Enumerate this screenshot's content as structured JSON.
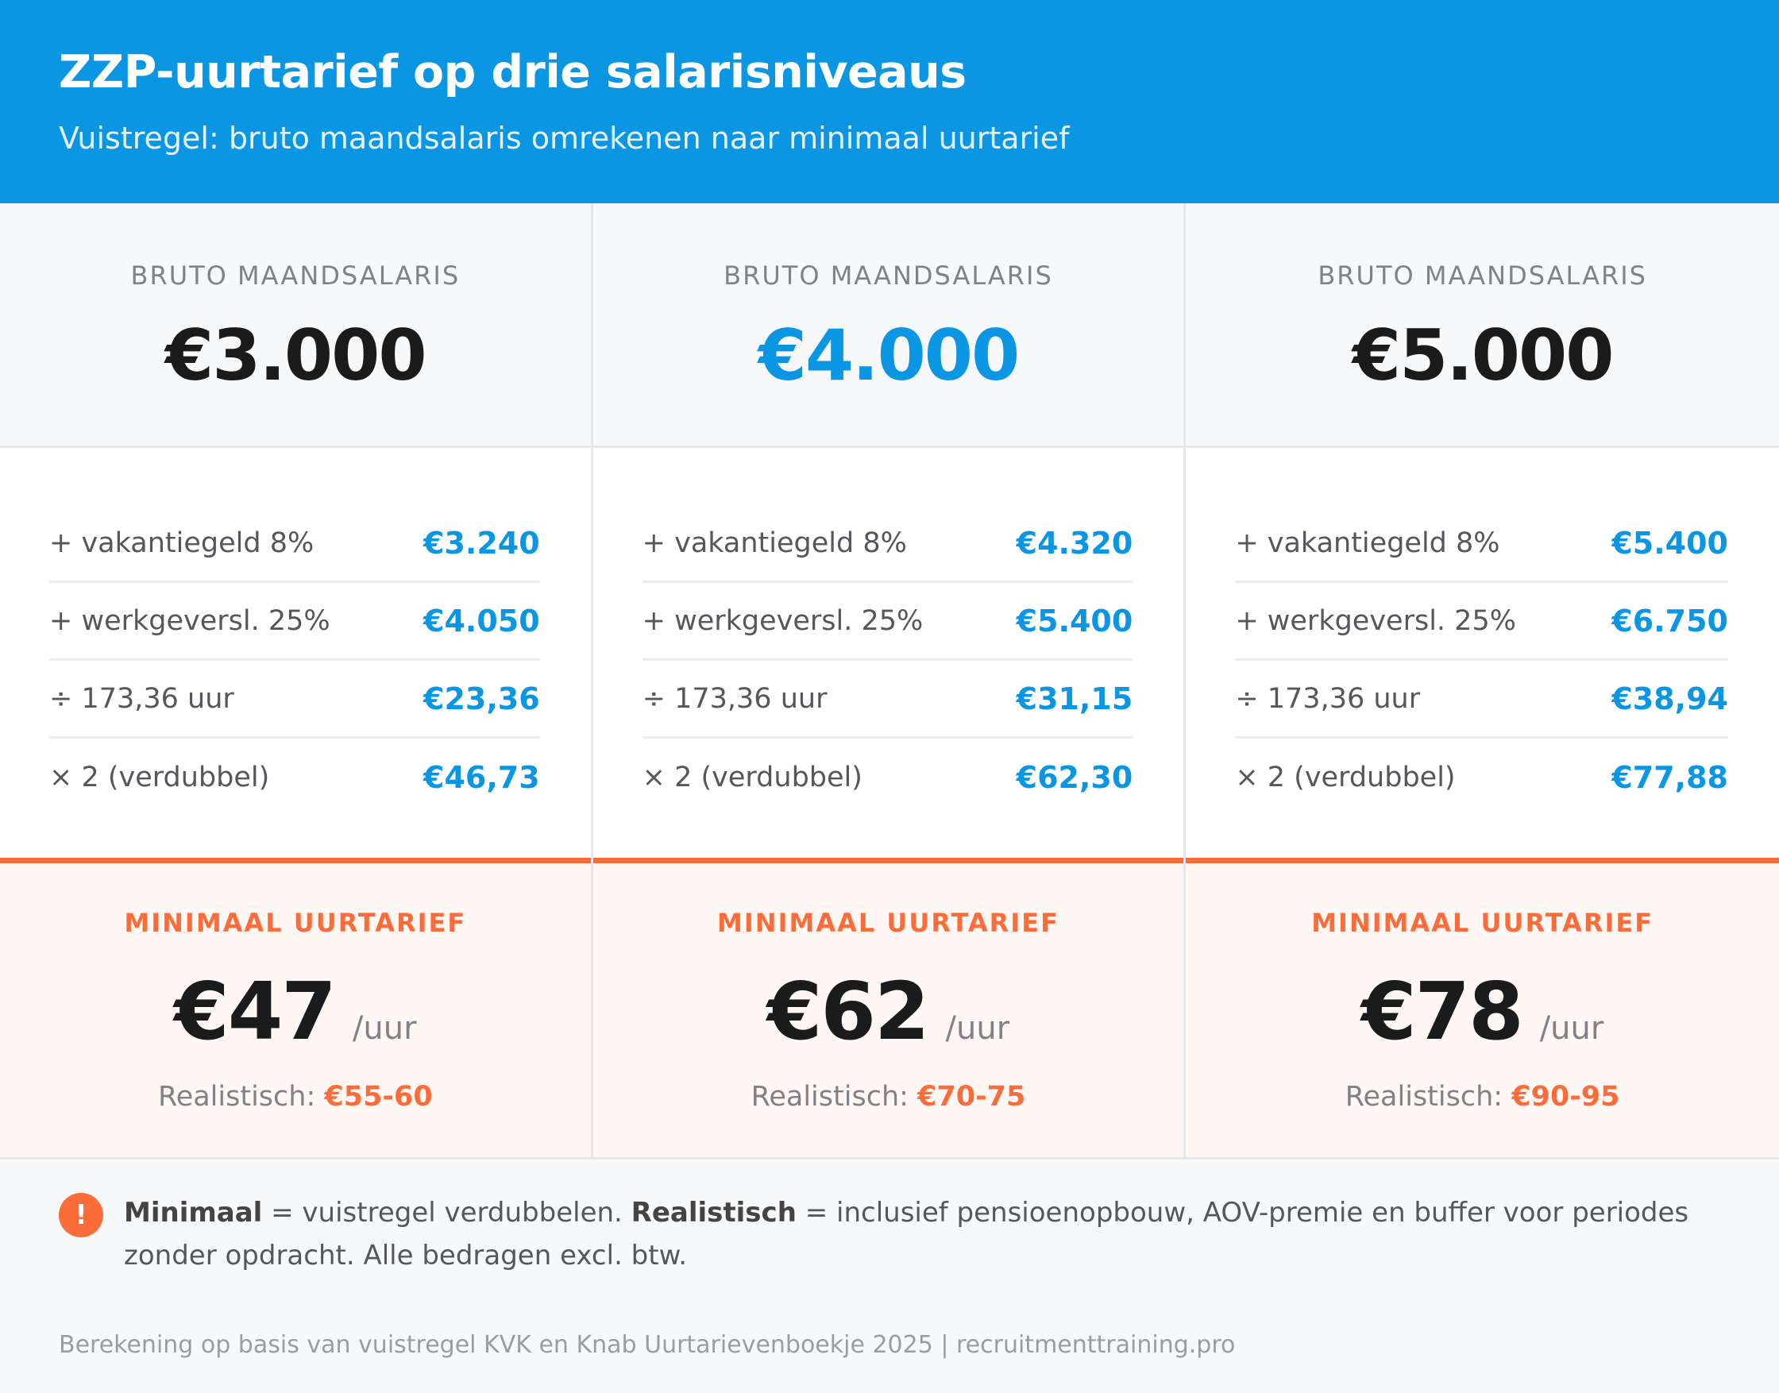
{
  "header": {
    "title": "ZZP-uurtarief op drie salarisniveaus",
    "subtitle": "Vuistregel: bruto maandsalaris omrekenen naar minimaal uurtarief"
  },
  "columns": [
    {
      "salary_label": "BRUTO MAANDSALARIS",
      "salary": "€3.000",
      "rows": [
        {
          "label": "+ vakantiegeld 8%",
          "value": "€3.240"
        },
        {
          "label": "+ werkgeversl. 25%",
          "value": "€4.050"
        },
        {
          "label": "÷ 173,36 uur",
          "value": "€23,36"
        },
        {
          "label": "× 2 (verdubbel)",
          "value": "€46,73"
        }
      ],
      "min_label": "MINIMAAL UURTARIEF",
      "rate": "€47",
      "unit": "/uur",
      "realistic_label": "Realistisch:",
      "realistic_value": "€55-60"
    },
    {
      "salary_label": "BRUTO MAANDSALARIS",
      "salary": "€4.000",
      "rows": [
        {
          "label": "+ vakantiegeld 8%",
          "value": "€4.320"
        },
        {
          "label": "+ werkgeversl. 25%",
          "value": "€5.400"
        },
        {
          "label": "÷ 173,36 uur",
          "value": "€31,15"
        },
        {
          "label": "× 2 (verdubbel)",
          "value": "€62,30"
        }
      ],
      "min_label": "MINIMAAL UURTARIEF",
      "rate": "€62",
      "unit": "/uur",
      "realistic_label": "Realistisch:",
      "realistic_value": "€70-75"
    },
    {
      "salary_label": "BRUTO MAANDSALARIS",
      "salary": "€5.000",
      "rows": [
        {
          "label": "+ vakantiegeld 8%",
          "value": "€5.400"
        },
        {
          "label": "+ werkgeversl. 25%",
          "value": "€6.750"
        },
        {
          "label": "÷ 173,36 uur",
          "value": "€38,94"
        },
        {
          "label": "× 2 (verdubbel)",
          "value": "€77,88"
        }
      ],
      "min_label": "MINIMAAL UURTARIEF",
      "rate": "€78",
      "unit": "/uur",
      "realistic_label": "Realistisch:",
      "realistic_value": "€90-95"
    }
  ],
  "note": {
    "icon": "exclamation-icon",
    "icon_glyph": "!",
    "term1": "Minimaal",
    "text1": " = vuistregel verdubbelen. ",
    "term2": "Realistisch",
    "text2": " = inclusief pensioenopbouw, AOV-premie en buffer voor periodes zonder opdracht. Alle bedragen excl. btw."
  },
  "footer": "Berekening op basis van vuistregel KVK en Knab Uurtarievenboekje 2025 | recruitmenttraining.pro",
  "colors": {
    "brand_blue": "#0a96e3",
    "accent_orange": "#fb6c3b"
  }
}
